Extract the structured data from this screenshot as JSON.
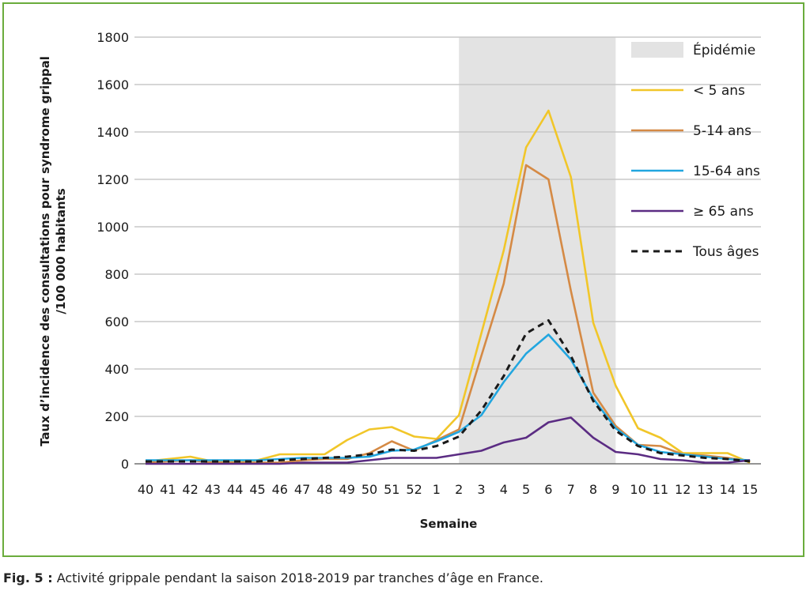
{
  "caption": {
    "label": "Fig. 5 :",
    "text": "Activité grippale pendant la saison 2018-2019 par tranches d’âge en France."
  },
  "chart_data": {
    "type": "line",
    "ylabel_line1": "Taux d’incidence des consultations pour syndrome grippal",
    "ylabel_line2": "/100 000 habitants",
    "xlabel": "Semaine",
    "ylim": [
      0,
      1800
    ],
    "yticks": [
      0,
      200,
      400,
      600,
      800,
      1000,
      1200,
      1400,
      1600,
      1800
    ],
    "grid": true,
    "legend_position": "right",
    "categories": [
      "40",
      "41",
      "42",
      "43",
      "44",
      "45",
      "46",
      "47",
      "48",
      "49",
      "50",
      "51",
      "52",
      "1",
      "2",
      "3",
      "4",
      "5",
      "6",
      "7",
      "8",
      "9",
      "10",
      "11",
      "12",
      "13",
      "14",
      "15"
    ],
    "epidemic": {
      "name": "Épidémie",
      "start": "2",
      "end": "9",
      "color": "#e3e3e3"
    },
    "series": [
      {
        "name": "< 5 ans",
        "color": "#f1c629",
        "dash": false,
        "values": [
          10,
          20,
          30,
          10,
          10,
          15,
          40,
          40,
          40,
          100,
          145,
          155,
          115,
          105,
          205,
          550,
          900,
          1335,
          1490,
          1210,
          595,
          330,
          150,
          110,
          45,
          45,
          45,
          5
        ]
      },
      {
        "name": "5-14 ans",
        "color": "#d58a45",
        "dash": false,
        "values": [
          5,
          10,
          15,
          5,
          5,
          5,
          5,
          15,
          20,
          20,
          45,
          95,
          55,
          100,
          145,
          455,
          760,
          1260,
          1200,
          730,
          300,
          160,
          80,
          75,
          40,
          35,
          25,
          10
        ]
      },
      {
        "name": "15-64 ans",
        "color": "#22a6df",
        "dash": false,
        "values": [
          15,
          15,
          15,
          15,
          15,
          15,
          20,
          25,
          25,
          25,
          30,
          55,
          60,
          95,
          135,
          205,
          345,
          465,
          545,
          440,
          275,
          150,
          80,
          50,
          40,
          30,
          20,
          15
        ]
      },
      {
        "name": "≥ 65 ans",
        "color": "#5b2c83",
        "dash": false,
        "values": [
          0,
          0,
          0,
          0,
          0,
          0,
          0,
          5,
          5,
          5,
          15,
          25,
          25,
          25,
          40,
          55,
          90,
          110,
          175,
          195,
          110,
          50,
          40,
          20,
          15,
          5,
          5,
          15
        ]
      },
      {
        "name": "Tous âges",
        "color": "#1a1a1a",
        "dash": true,
        "values": [
          10,
          10,
          10,
          10,
          10,
          10,
          15,
          20,
          25,
          30,
          40,
          60,
          55,
          75,
          115,
          225,
          370,
          550,
          605,
          455,
          265,
          140,
          75,
          45,
          35,
          25,
          20,
          10
        ]
      }
    ]
  }
}
